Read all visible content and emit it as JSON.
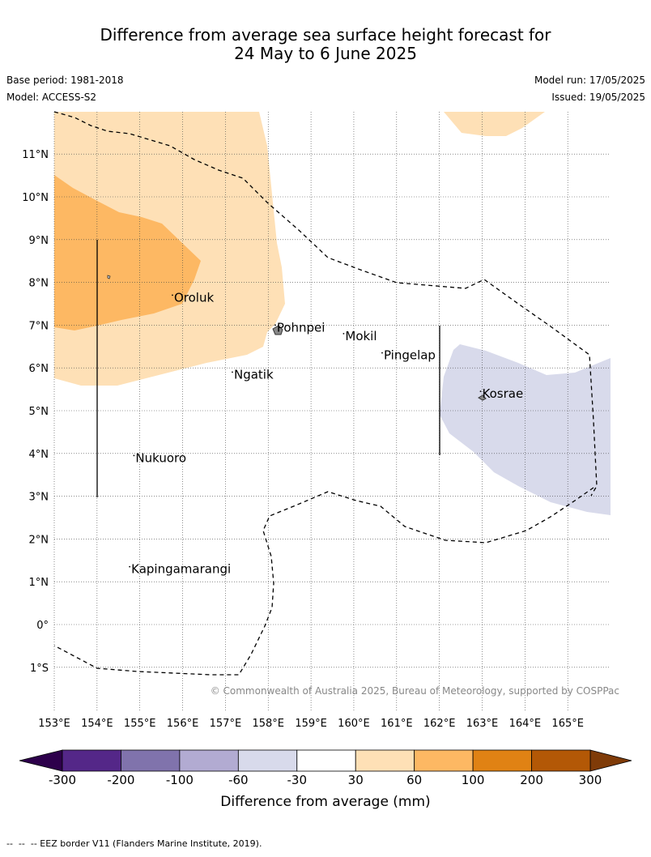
{
  "title": {
    "line1": "Difference from average sea surface height forecast for",
    "line2": "24 May to 6 June 2025"
  },
  "info": {
    "base_period": "Base period: 1981-2018",
    "model": "Model: ACCESS-S2",
    "model_run": "Model run: 17/05/2025",
    "issued": "Issued: 19/05/2025"
  },
  "map": {
    "lon_range": [
      153,
      166
    ],
    "lat_range": [
      -2,
      12
    ],
    "lon_ticks": [
      "153°E",
      "154°E",
      "155°E",
      "156°E",
      "157°E",
      "158°E",
      "159°E",
      "160°E",
      "161°E",
      "162°E",
      "163°E",
      "164°E",
      "165°E"
    ],
    "lat_ticks": [
      "11°N",
      "10°N",
      "9°N",
      "8°N",
      "7°N",
      "6°N",
      "5°N",
      "4°N",
      "3°N",
      "2°N",
      "1°N",
      "0°",
      "1°S"
    ],
    "gridlines": true,
    "places": [
      {
        "name": "Oroluk",
        "lon": 155.8,
        "lat": 7.55
      },
      {
        "name": "Pohnpei",
        "lon": 158.2,
        "lat": 6.85
      },
      {
        "name": "Mokil",
        "lon": 159.8,
        "lat": 6.65
      },
      {
        "name": "Pingelap",
        "lon": 160.7,
        "lat": 6.2
      },
      {
        "name": "Ngatik",
        "lon": 157.2,
        "lat": 5.75
      },
      {
        "name": "Kosrae",
        "lon": 163.0,
        "lat": 5.3
      },
      {
        "name": "Nukuoro",
        "lon": 154.9,
        "lat": 3.8
      },
      {
        "name": "Kapingamarangi",
        "lon": 154.8,
        "lat": 1.2
      }
    ],
    "copyright": "© Commonwealth of Australia 2025, Bureau of Meteorology, supported by COSPPac"
  },
  "colorbar": {
    "label": "Difference from average (mm)",
    "ticks": [
      "-300",
      "-200",
      "-100",
      "-60",
      "-30",
      "30",
      "60",
      "100",
      "200",
      "300"
    ],
    "colors": [
      "#542788",
      "#8073ac",
      "#b2abd2",
      "#d8daeb",
      "#ffffff",
      "#fee0b6",
      "#fdb863",
      "#e08214",
      "#b35806"
    ],
    "under_color": "#2d004b",
    "over_color": "#7f3b08"
  },
  "footer": "--  --  -- EEZ border V11 (Flanders Marine Institute, 2019)."
}
